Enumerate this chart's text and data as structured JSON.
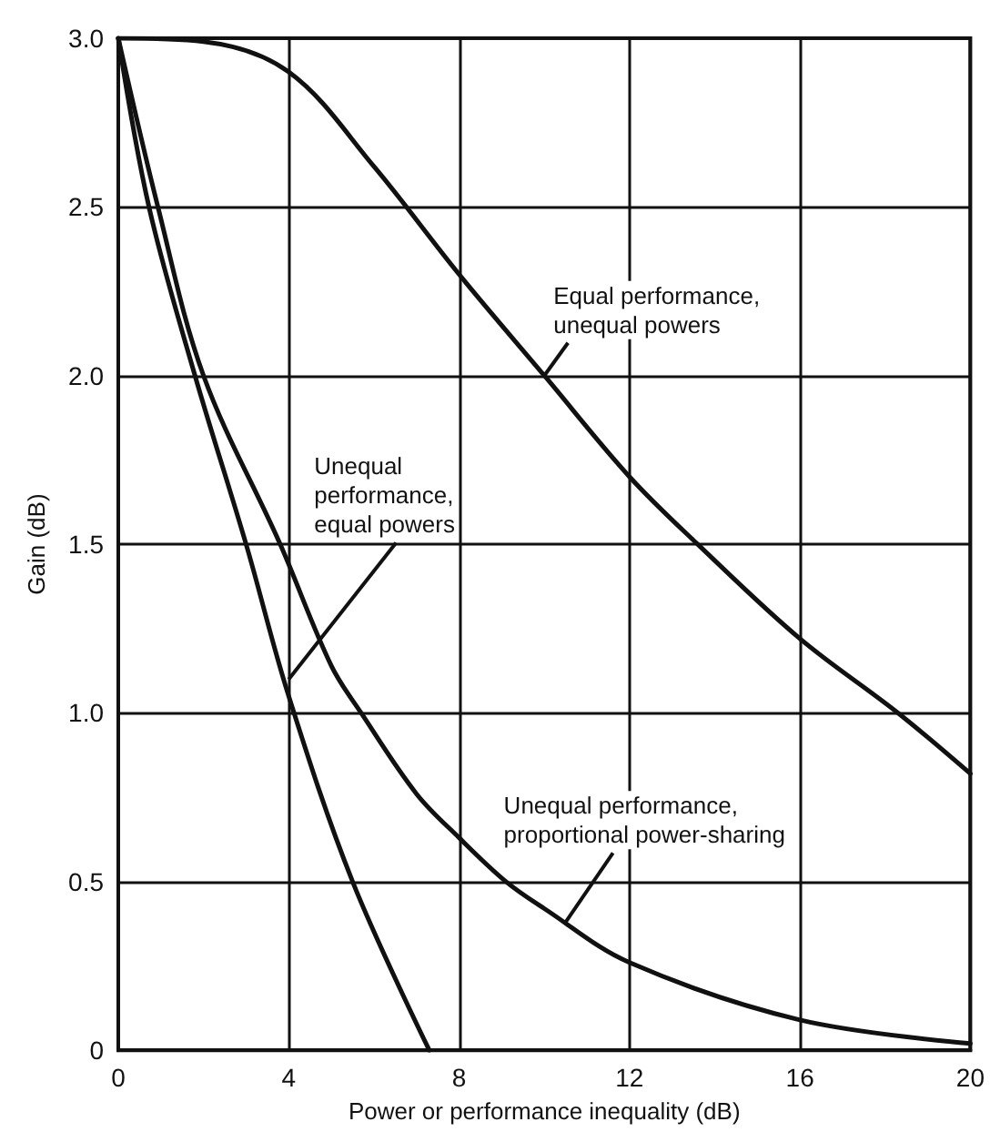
{
  "chart_data": {
    "type": "line",
    "xlabel": "Power or performance inequality (dB)",
    "ylabel": "Gain (dB)",
    "xlim": [
      0,
      20
    ],
    "ylim": [
      0,
      3
    ],
    "xticks": [
      0,
      4,
      8,
      12,
      16,
      20
    ],
    "yticks": [
      0,
      {
        "value": 0.5,
        "label": "0.5"
      },
      {
        "value": 1,
        "label": "1.0"
      },
      {
        "value": 1.5,
        "label": "1.5"
      },
      {
        "value": 2,
        "label": "2.0"
      },
      {
        "value": 2.5,
        "label": "2.5"
      },
      {
        "value": 3,
        "label": "3.0"
      }
    ],
    "grid": true,
    "marker": "none",
    "line_style": "solid",
    "series": [
      {
        "color": "#111111",
        "x": [
          0,
          2,
          4,
          6,
          8,
          10,
          12,
          13.6,
          16,
          18.3,
          20
        ],
        "values": [
          3,
          2.99,
          2.9,
          2.62,
          2.3,
          2,
          1.7,
          1.5,
          1.22,
          1,
          0.82
        ]
      },
      {
        "color": "#111111",
        "x": [
          0,
          0.72,
          1.8,
          3,
          4,
          5.5,
          7.3
        ],
        "values": [
          3,
          2.5,
          2,
          1.5,
          1.05,
          0.5,
          0
        ]
      },
      {
        "color": "#111111",
        "x": [
          0,
          0.93,
          2,
          3.8,
          5,
          5.7,
          7,
          8,
          9.1,
          10,
          12,
          16,
          20
        ],
        "values": [
          3,
          2.5,
          2,
          1.5,
          1.14,
          1,
          0.76,
          0.63,
          0.5,
          0.42,
          0.26,
          0.09,
          0.02
        ]
      }
    ],
    "annotations": [
      {
        "text": "Equal performance,\nunequal powers",
        "x": 10,
        "y": 2
      },
      {
        "text": "Unequal\nperformance,\nequal powers",
        "x": 4,
        "y": 1.1
      },
      {
        "text": "Unequal performance,\nproportional power-sharing",
        "x": 10.5,
        "y": 0.38
      }
    ]
  }
}
